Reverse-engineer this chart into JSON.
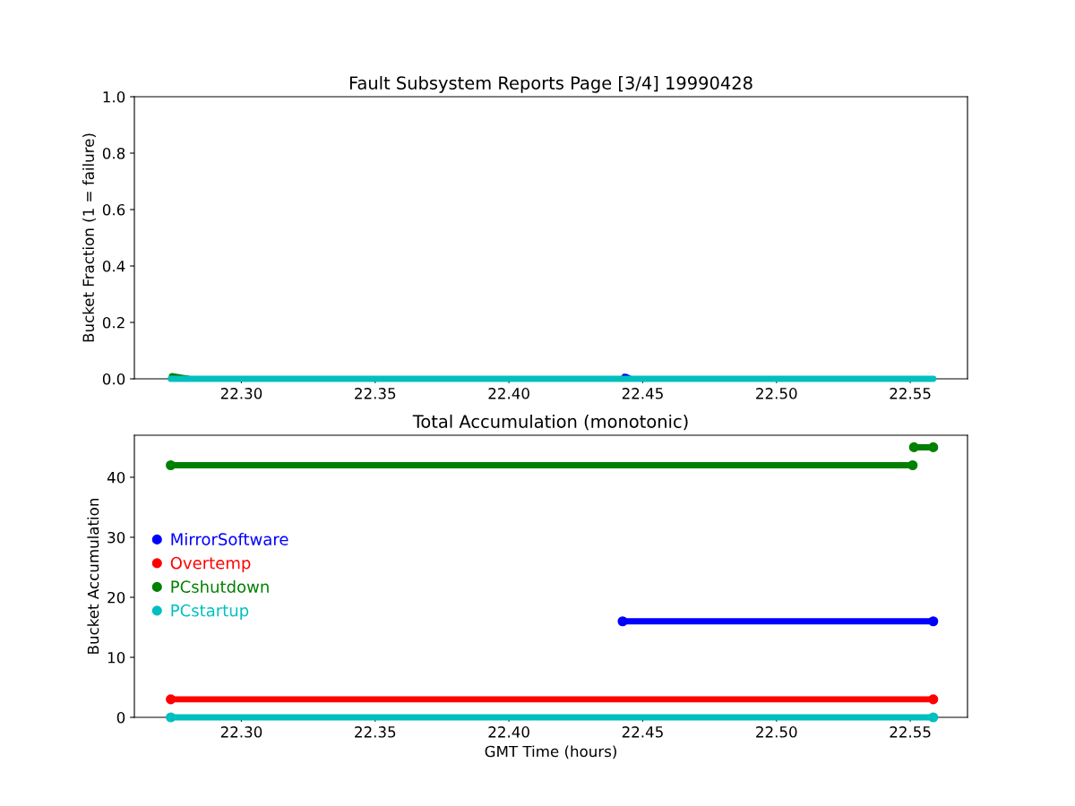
{
  "chart_data": [
    {
      "type": "area",
      "title": "Fault Subsystem Reports Page [3/4] 19990428",
      "ylabel": "Bucket Fraction (1 = failure)",
      "xlim": [
        22.26,
        22.5714
      ],
      "xticks": [
        {
          "value": 22.3,
          "label": "22.30"
        },
        {
          "value": 22.35,
          "label": "22.35"
        },
        {
          "value": 22.4,
          "label": "22.40"
        },
        {
          "value": 22.45,
          "label": "22.45"
        },
        {
          "value": 22.5,
          "label": "22.50"
        },
        {
          "value": 22.55,
          "label": "22.55"
        }
      ],
      "ylim": [
        0,
        1
      ],
      "yticks": [
        {
          "value": 0,
          "label": "0.0"
        },
        {
          "value": 0.2,
          "label": "0.2"
        },
        {
          "value": 0.4,
          "label": "0.4"
        },
        {
          "value": 0.6,
          "label": "0.6"
        },
        {
          "value": 0.8,
          "label": "0.8"
        },
        {
          "value": 1,
          "label": "1.0"
        }
      ],
      "series": [
        {
          "color": "#0000ff",
          "x": [
            22.442,
            22.443,
            22.444,
            22.445,
            22.446
          ],
          "values": [
            0.0,
            0.012,
            0.011,
            0.006,
            0.0
          ]
        },
        {
          "color": "#008000",
          "x": [
            22.2736,
            22.274,
            22.276,
            22.278,
            22.28,
            22.282
          ],
          "values": [
            0.012,
            0.014,
            0.011,
            0.008,
            0.005,
            0.0
          ]
        },
        {
          "type": "line",
          "color": "#00bfbf",
          "x": [
            22.2736,
            22.5586
          ],
          "values": [
            0.0,
            0.0
          ]
        }
      ]
    },
    {
      "type": "line",
      "title": "Total Accumulation (monotonic)",
      "xlabel": "GMT Time (hours)",
      "ylabel": "Bucket Accumulation",
      "marker": "circle",
      "legend": "center left",
      "xlim": [
        22.26,
        22.5714
      ],
      "xticks": [
        {
          "value": 22.3,
          "label": "22.30"
        },
        {
          "value": 22.35,
          "label": "22.35"
        },
        {
          "value": 22.4,
          "label": "22.40"
        },
        {
          "value": 22.45,
          "label": "22.45"
        },
        {
          "value": 22.5,
          "label": "22.50"
        },
        {
          "value": 22.55,
          "label": "22.55"
        }
      ],
      "ylim": [
        0,
        47
      ],
      "yticks": [
        0,
        10,
        20,
        30,
        40
      ],
      "series": [
        {
          "name": "MirrorSoftware",
          "color": "#0000ff",
          "x": [
            22.4425,
            22.5586
          ],
          "values": [
            16,
            16
          ]
        },
        {
          "name": "Overtemp",
          "color": "#ff0000",
          "x": [
            22.2736,
            22.5586
          ],
          "values": [
            3,
            3
          ]
        },
        {
          "name": "PCshutdown",
          "color": "#008000",
          "x": [
            22.2736,
            22.5509,
            22.5512,
            22.5514,
            22.5586
          ],
          "values": [
            42,
            42,
            null,
            45,
            45
          ]
        },
        {
          "name": "PCstartup",
          "color": "#00bfbf",
          "x": [
            22.2736,
            22.5586
          ],
          "values": [
            0,
            0
          ]
        }
      ]
    }
  ]
}
